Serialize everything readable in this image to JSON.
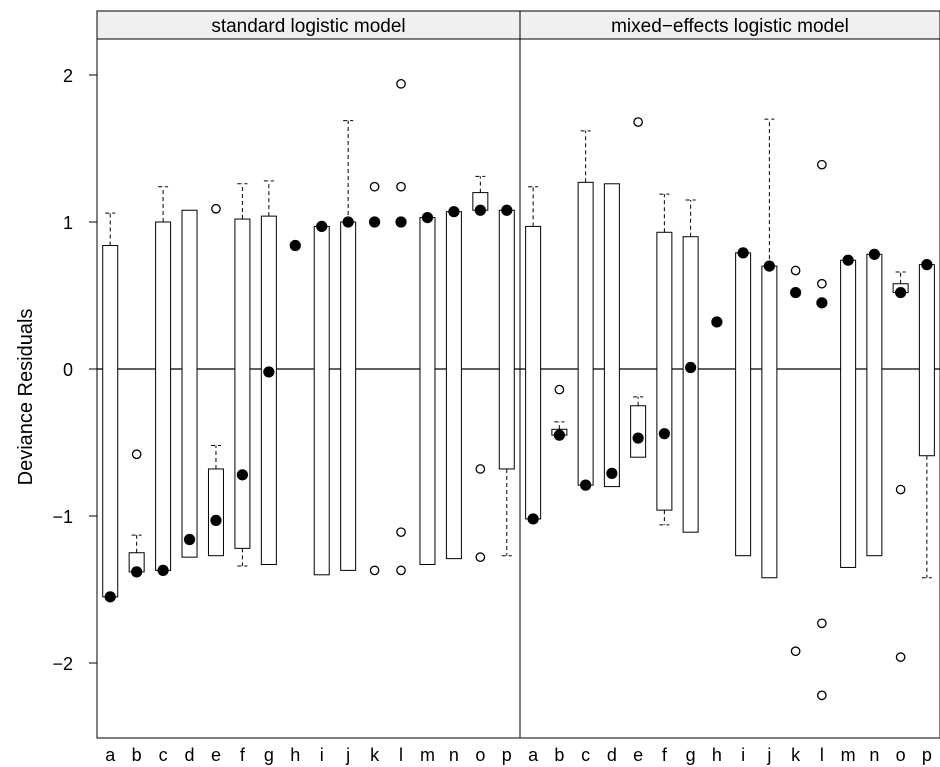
{
  "chart_data": {
    "type": "boxplot",
    "ylabel": "Deviance Residuals",
    "ylim": [
      -2.5,
      2.25
    ],
    "yticks": [
      -2,
      -1,
      0,
      1,
      2
    ],
    "reference_line": 0,
    "categories": [
      "a",
      "b",
      "c",
      "d",
      "e",
      "f",
      "g",
      "h",
      "i",
      "j",
      "k",
      "l",
      "m",
      "n",
      "o",
      "p"
    ],
    "panels": [
      {
        "title": "standard logistic model",
        "boxes": [
          {
            "cat": "a",
            "q1": -1.55,
            "med": -1.55,
            "q3": 0.84,
            "lo": -1.55,
            "hi": 1.06,
            "out": []
          },
          {
            "cat": "b",
            "q1": -1.38,
            "med": -1.38,
            "q3": -1.25,
            "lo": -1.38,
            "hi": -1.13,
            "out": [
              -0.58
            ]
          },
          {
            "cat": "c",
            "q1": -1.37,
            "med": -1.37,
            "q3": 1.0,
            "lo": -1.37,
            "hi": 1.24,
            "out": []
          },
          {
            "cat": "d",
            "q1": -1.28,
            "med": -1.16,
            "q3": 1.08,
            "lo": -1.28,
            "hi": 1.08,
            "out": []
          },
          {
            "cat": "e",
            "q1": -1.27,
            "med": -1.03,
            "q3": -0.68,
            "lo": -1.27,
            "hi": -0.52,
            "out": [
              1.09
            ]
          },
          {
            "cat": "f",
            "q1": -1.22,
            "med": -0.72,
            "q3": 1.02,
            "lo": -1.34,
            "hi": 1.26,
            "out": []
          },
          {
            "cat": "g",
            "q1": -1.33,
            "med": -0.02,
            "q3": 1.04,
            "lo": -1.33,
            "hi": 1.28,
            "out": []
          },
          {
            "cat": "h",
            "q1": 0.84,
            "med": 0.84,
            "q3": 0.84,
            "lo": 0.84,
            "hi": 0.84,
            "out": []
          },
          {
            "cat": "i",
            "q1": -1.4,
            "med": 0.97,
            "q3": 0.97,
            "lo": -1.4,
            "hi": 0.97,
            "out": []
          },
          {
            "cat": "j",
            "q1": -1.37,
            "med": 1.0,
            "q3": 1.0,
            "lo": -1.37,
            "hi": 1.69,
            "out": []
          },
          {
            "cat": "k",
            "q1": 1.0,
            "med": 1.0,
            "q3": 1.0,
            "lo": 1.0,
            "hi": 1.0,
            "out": [
              1.24,
              -1.37
            ]
          },
          {
            "cat": "l",
            "q1": 1.0,
            "med": 1.0,
            "q3": 1.0,
            "lo": 1.0,
            "hi": 1.0,
            "out": [
              1.94,
              1.24,
              -1.11,
              -1.37
            ]
          },
          {
            "cat": "m",
            "q1": -1.33,
            "med": 1.03,
            "q3": 1.03,
            "lo": -1.33,
            "hi": 1.03,
            "out": []
          },
          {
            "cat": "n",
            "q1": -1.29,
            "med": 1.07,
            "q3": 1.07,
            "lo": -1.29,
            "hi": 1.07,
            "out": []
          },
          {
            "cat": "o",
            "q1": 1.08,
            "med": 1.08,
            "q3": 1.2,
            "lo": 1.08,
            "hi": 1.31,
            "out": [
              -0.68,
              -1.28
            ]
          },
          {
            "cat": "p",
            "q1": -0.68,
            "med": 1.08,
            "q3": 1.08,
            "lo": -1.27,
            "hi": 1.08,
            "out": []
          }
        ]
      },
      {
        "title": "mixed−effects logistic model",
        "boxes": [
          {
            "cat": "a",
            "q1": -1.02,
            "med": -1.02,
            "q3": 0.97,
            "lo": -1.02,
            "hi": 1.24,
            "out": []
          },
          {
            "cat": "b",
            "q1": -0.45,
            "med": -0.45,
            "q3": -0.41,
            "lo": -0.45,
            "hi": -0.36,
            "out": [
              -0.14
            ]
          },
          {
            "cat": "c",
            "q1": -0.79,
            "med": -0.79,
            "q3": 1.27,
            "lo": -0.79,
            "hi": 1.62,
            "out": []
          },
          {
            "cat": "d",
            "q1": -0.8,
            "med": -0.71,
            "q3": 1.26,
            "lo": -0.8,
            "hi": 1.26,
            "out": []
          },
          {
            "cat": "e",
            "q1": -0.6,
            "med": -0.47,
            "q3": -0.25,
            "lo": -0.6,
            "hi": -0.19,
            "out": [
              1.68
            ]
          },
          {
            "cat": "f",
            "q1": -0.96,
            "med": -0.44,
            "q3": 0.93,
            "lo": -1.06,
            "hi": 1.19,
            "out": []
          },
          {
            "cat": "g",
            "q1": -1.11,
            "med": 0.01,
            "q3": 0.9,
            "lo": -1.11,
            "hi": 1.15,
            "out": []
          },
          {
            "cat": "h",
            "q1": 0.32,
            "med": 0.32,
            "q3": 0.32,
            "lo": 0.32,
            "hi": 0.32,
            "out": []
          },
          {
            "cat": "i",
            "q1": -1.27,
            "med": 0.79,
            "q3": 0.79,
            "lo": -1.27,
            "hi": 0.79,
            "out": []
          },
          {
            "cat": "j",
            "q1": -1.42,
            "med": 0.7,
            "q3": 0.7,
            "lo": -1.42,
            "hi": 1.7,
            "out": []
          },
          {
            "cat": "k",
            "q1": 0.52,
            "med": 0.52,
            "q3": 0.52,
            "lo": 0.52,
            "hi": 0.52,
            "out": [
              0.67,
              -1.92
            ]
          },
          {
            "cat": "l",
            "q1": 0.45,
            "med": 0.45,
            "q3": 0.45,
            "lo": 0.45,
            "hi": 0.45,
            "out": [
              1.39,
              0.58,
              -1.73,
              -2.22
            ]
          },
          {
            "cat": "m",
            "q1": -1.35,
            "med": 0.74,
            "q3": 0.74,
            "lo": -1.35,
            "hi": 0.74,
            "out": []
          },
          {
            "cat": "n",
            "q1": -1.27,
            "med": 0.78,
            "q3": 0.78,
            "lo": -1.27,
            "hi": 0.78,
            "out": []
          },
          {
            "cat": "o",
            "q1": 0.52,
            "med": 0.52,
            "q3": 0.58,
            "lo": 0.52,
            "hi": 0.66,
            "out": [
              -0.82,
              -1.96
            ]
          },
          {
            "cat": "p",
            "q1": -0.59,
            "med": 0.71,
            "q3": 0.71,
            "lo": -1.42,
            "hi": 0.71,
            "out": []
          }
        ]
      }
    ]
  }
}
